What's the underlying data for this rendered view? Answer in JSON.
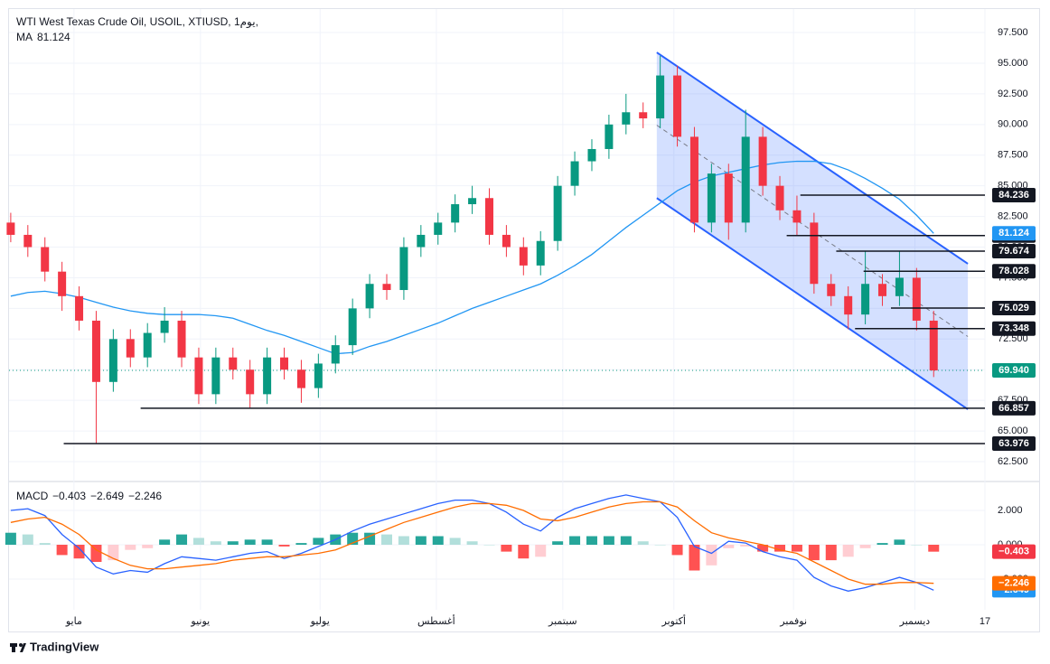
{
  "chart_data": {
    "type": "candlestick",
    "title": "WTI West Texas Crude Oil, USOIL, XTIUSD, 1يوم,",
    "up_color": "#089981",
    "down_color": "#f23645",
    "candles": [
      [
        82,
        82.8,
        80.4,
        81
      ],
      [
        81,
        81.8,
        79.2,
        80
      ],
      [
        80,
        80.8,
        77.2,
        78
      ],
      [
        78,
        78.8,
        74.8,
        76
      ],
      [
        76,
        76.8,
        73.2,
        74
      ],
      [
        74,
        74.8,
        63.976,
        69
      ],
      [
        69,
        73.3,
        68.2,
        72.5
      ],
      [
        72.5,
        73.3,
        70.2,
        71
      ],
      [
        71,
        73.8,
        70.2,
        73
      ],
      [
        73,
        75.1,
        72.2,
        74
      ],
      [
        74,
        74.8,
        70.2,
        71
      ],
      [
        71,
        71.8,
        67.2,
        68
      ],
      [
        68,
        71.8,
        67.2,
        71
      ],
      [
        71,
        71.8,
        69.2,
        70
      ],
      [
        70,
        70.8,
        66.9,
        68
      ],
      [
        68,
        71.8,
        67.2,
        71
      ],
      [
        71,
        71.8,
        69.2,
        70
      ],
      [
        70,
        70.8,
        67.3,
        68.5
      ],
      [
        68.5,
        71.3,
        67.7,
        70.5
      ],
      [
        70.5,
        72.8,
        69.7,
        72
      ],
      [
        72,
        75.8,
        71.2,
        75
      ],
      [
        75,
        77.8,
        74.2,
        77
      ],
      [
        77,
        77.8,
        75.7,
        76.5
      ],
      [
        76.5,
        80.8,
        75.7,
        80
      ],
      [
        80,
        81.8,
        79.2,
        81
      ],
      [
        81,
        82.8,
        80.2,
        82
      ],
      [
        82,
        84.3,
        81.2,
        83.5
      ],
      [
        83.5,
        85,
        82.7,
        84
      ],
      [
        84,
        84.8,
        80.2,
        81
      ],
      [
        81,
        81.8,
        79.2,
        80
      ],
      [
        80,
        80.8,
        77.7,
        78.5
      ],
      [
        78.5,
        81.3,
        77.7,
        80.5
      ],
      [
        80.5,
        85.8,
        79.7,
        85
      ],
      [
        85,
        87.8,
        84.2,
        87
      ],
      [
        87,
        88.8,
        86.2,
        88
      ],
      [
        88,
        90.8,
        87.2,
        90
      ],
      [
        90,
        92.5,
        89.2,
        91
      ],
      [
        91,
        91.8,
        89.7,
        90.5
      ],
      [
        90.5,
        95.6,
        89.7,
        94
      ],
      [
        94,
        94.8,
        88.2,
        89
      ],
      [
        89,
        89.8,
        81.2,
        82
      ],
      [
        82,
        86.8,
        81.2,
        86
      ],
      [
        86,
        86.8,
        80.6,
        82
      ],
      [
        82,
        91.2,
        81.2,
        89
      ],
      [
        89,
        89.8,
        84.2,
        85
      ],
      [
        85,
        85.8,
        82.2,
        83
      ],
      [
        83,
        84.2,
        80.9,
        82
      ],
      [
        82,
        82.8,
        76.2,
        77
      ],
      [
        77,
        77.8,
        75.2,
        76
      ],
      [
        76,
        76.8,
        73.3,
        74.5
      ],
      [
        74.5,
        79.7,
        73.7,
        77
      ],
      [
        77,
        77.8,
        75.2,
        76
      ],
      [
        76,
        79.7,
        75.2,
        77.5
      ],
      [
        77.5,
        78.3,
        73.2,
        74
      ],
      [
        74,
        74.8,
        69.4,
        69.94
      ]
    ],
    "xlim": [
      -0.1,
      57
    ],
    "xticks": [
      {
        "value": 3.7,
        "label": "مايو"
      },
      {
        "value": 11.1,
        "label": "يونيو"
      },
      {
        "value": 18.1,
        "label": "يوليو"
      },
      {
        "value": 24.9,
        "label": "أغسطس"
      },
      {
        "value": 32.3,
        "label": "سبتمبر"
      },
      {
        "value": 38.8,
        "label": "أكتوبر"
      },
      {
        "value": 45.8,
        "label": "نوفمبر"
      },
      {
        "value": 52.9,
        "label": "ديسمبر"
      },
      {
        "value": 57,
        "label": "17"
      }
    ],
    "ylim": [
      61.1,
      99.42
    ],
    "yticks": [
      {
        "value": 97.5,
        "label": "97.500"
      },
      {
        "value": 95,
        "label": "95.000"
      },
      {
        "value": 92.5,
        "label": "92.500"
      },
      {
        "value": 90,
        "label": "90.000"
      },
      {
        "value": 87.5,
        "label": "87.500"
      },
      {
        "value": 85,
        "label": "85.000"
      },
      {
        "value": 82.5,
        "label": "82.500"
      },
      {
        "value": 80,
        "label": "80.000"
      },
      {
        "value": 77.5,
        "label": "77.500"
      },
      {
        "value": 75,
        "label": "75.000"
      },
      {
        "value": 72.5,
        "label": "72.500"
      },
      {
        "value": 70,
        "label": "70.000"
      },
      {
        "value": 67.5,
        "label": "67.500"
      },
      {
        "value": 65,
        "label": "65.000"
      },
      {
        "value": 62.5,
        "label": "62.500"
      }
    ],
    "ma": {
      "name": "MA",
      "value": 81.124,
      "color": "#2196f3",
      "values": [
        76.0,
        76.3,
        76.4,
        76.2,
        75.9,
        75.5,
        75.1,
        74.8,
        74.6,
        74.5,
        74.5,
        74.5,
        74.4,
        74.2,
        73.7,
        73.2,
        72.8,
        72.3,
        71.8,
        71.3,
        71.4,
        71.9,
        72.3,
        72.8,
        73.3,
        73.8,
        74.4,
        75.0,
        75.5,
        76.0,
        76.5,
        77.0,
        77.7,
        78.5,
        79.4,
        80.5,
        81.6,
        82.6,
        83.6,
        84.6,
        85.3,
        85.8,
        86.1,
        86.4,
        86.7,
        86.9,
        87.0,
        87.0,
        86.8,
        86.3,
        85.6,
        84.8,
        83.9,
        82.6,
        81.124
      ]
    },
    "last_price": {
      "value": 69.94,
      "label": "69.940",
      "color": "#089981"
    },
    "levels": [
      {
        "value": 84.236,
        "from": 46.2
      },
      {
        "value": 80.943,
        "from": 45.4
      },
      {
        "value": 79.674,
        "from": 48.3
      },
      {
        "value": 78.028,
        "from": 49.9
      },
      {
        "value": 75.029,
        "from": 51.5
      },
      {
        "value": 73.348,
        "from": 49.4
      },
      {
        "value": 66.857,
        "from": 7.6
      },
      {
        "value": 63.976,
        "from": 3.1
      }
    ],
    "level_color": "#131722",
    "channel": {
      "x": [
        37.8,
        56
      ],
      "upper": [
        95.88,
        78.64
      ],
      "lower": [
        84.0,
        66.77
      ],
      "color": "#2962ff"
    },
    "macd": {
      "name": "MACD",
      "ylim": [
        -3.79,
        3.58
      ],
      "yticks": [
        {
          "value": 2,
          "label": "2.000"
        },
        {
          "value": 0,
          "label": "0.000"
        },
        {
          "value": -2,
          "label": "−2.000"
        }
      ],
      "histogram": [
        0.7,
        0.6,
        0.1,
        -0.6,
        -0.8,
        -1.0,
        -0.9,
        -0.3,
        -0.2,
        0.3,
        0.6,
        0.4,
        0.2,
        0.2,
        0.3,
        0.3,
        -0.1,
        0.1,
        0.4,
        0.6,
        0.7,
        0.7,
        0.6,
        0.5,
        0.5,
        0.5,
        0.4,
        0.2,
        0.0,
        -0.4,
        -0.8,
        -0.7,
        0.2,
        0.5,
        0.5,
        0.5,
        0.5,
        0.2,
        0.0,
        -0.6,
        -1.5,
        -1.2,
        -0.2,
        -0.1,
        -0.4,
        -0.4,
        -0.4,
        -0.9,
        -0.9,
        -0.7,
        -0.2,
        0.1,
        0.3,
        0.0,
        -0.403
      ],
      "hist_colors": [
        "#26a69a",
        "#b2dfdb",
        "#ff5252",
        "#ffcdd2"
      ],
      "macd": [
        2.0,
        2.1,
        1.7,
        0.6,
        -0.2,
        -1.3,
        -1.7,
        -1.5,
        -1.6,
        -1.1,
        -0.7,
        -0.8,
        -0.9,
        -0.7,
        -0.5,
        -0.4,
        -0.8,
        -0.5,
        -0.1,
        0.3,
        0.8,
        1.2,
        1.5,
        1.8,
        2.1,
        2.4,
        2.6,
        2.6,
        2.4,
        1.9,
        1.2,
        0.8,
        1.6,
        2.1,
        2.4,
        2.7,
        2.9,
        2.7,
        2.5,
        1.6,
        -0.1,
        -0.5,
        0.2,
        0.1,
        -0.4,
        -0.7,
        -0.9,
        -1.9,
        -2.4,
        -2.7,
        -2.5,
        -2.2,
        -1.9,
        -2.2,
        -2.649
      ],
      "signal": [
        1.3,
        1.5,
        1.6,
        1.2,
        0.6,
        -0.3,
        -0.8,
        -1.2,
        -1.4,
        -1.4,
        -1.3,
        -1.2,
        -1.1,
        -0.9,
        -0.8,
        -0.7,
        -0.7,
        -0.6,
        -0.5,
        -0.3,
        0.1,
        0.5,
        0.9,
        1.3,
        1.6,
        1.9,
        2.2,
        2.4,
        2.4,
        2.3,
        2.0,
        1.5,
        1.4,
        1.6,
        1.9,
        2.2,
        2.4,
        2.5,
        2.5,
        2.2,
        1.4,
        0.7,
        0.4,
        0.2,
        0.0,
        -0.3,
        -0.5,
        -1.0,
        -1.5,
        -2.0,
        -2.3,
        -2.3,
        -2.2,
        -2.2,
        -2.246
      ],
      "macd_color": "#2962ff",
      "signal_color": "#ff6d00",
      "legend": [
        {
          "value": -0.403,
          "label": "−0.403",
          "color": "#f23645"
        },
        {
          "value": -2.649,
          "label": "−2.649",
          "color": "#2196f3"
        },
        {
          "value": -2.246,
          "label": "−2.246",
          "color": "#ff6d00"
        }
      ]
    }
  },
  "branding": "TradingView"
}
